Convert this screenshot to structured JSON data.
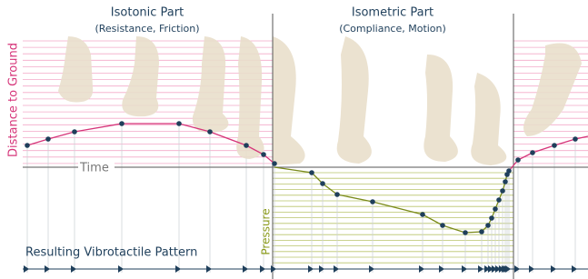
{
  "isotonic": {
    "title": "Isotonic Part",
    "subtitle": "(Resistance, Friction)"
  },
  "isometric": {
    "title": "Isometric Part",
    "subtitle": "(Compliance, Motion)"
  },
  "axes": {
    "distance": "Distance to Ground",
    "time": "Time",
    "pressure": "Pressure"
  },
  "pattern_label": "Resulting Vibrotactile Pattern"
}
